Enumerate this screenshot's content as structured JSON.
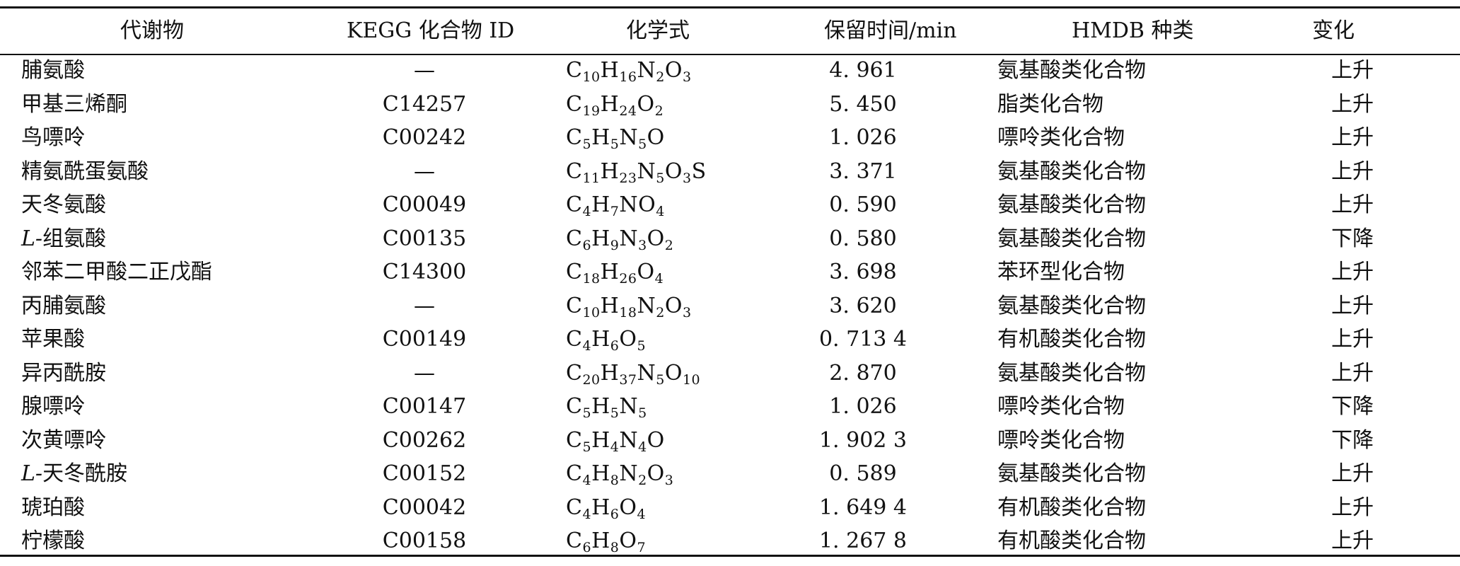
{
  "headers": {
    "metabolite": "代谢物",
    "kegg_id": "KEGG 化合物 ID",
    "formula": "化学式",
    "retention_time": "保留时间/min",
    "hmdb_class": "HMDB 种类",
    "change": "变化"
  },
  "rows": [
    {
      "prefix": "",
      "name": "脯氨酸",
      "kegg": "—",
      "formula": [
        [
          "C",
          "10"
        ],
        [
          "H",
          "16"
        ],
        [
          "N",
          "2"
        ],
        [
          "O",
          "3"
        ]
      ],
      "rt": "4. 961",
      "class": "氨基酸类化合物",
      "change": "上升"
    },
    {
      "prefix": "",
      "name": "甲基三烯酮",
      "kegg": "C14257",
      "formula": [
        [
          "C",
          "19"
        ],
        [
          "H",
          "24"
        ],
        [
          "O",
          "2"
        ]
      ],
      "rt": "5. 450",
      "class": "脂类化合物",
      "change": "上升"
    },
    {
      "prefix": "",
      "name": "鸟嘌呤",
      "kegg": "C00242",
      "formula": [
        [
          "C",
          "5"
        ],
        [
          "H",
          "5"
        ],
        [
          "N",
          "5"
        ],
        [
          "O",
          ""
        ]
      ],
      "rt": "1. 026",
      "class": "嘌呤类化合物",
      "change": "上升"
    },
    {
      "prefix": "",
      "name": "精氨酰蛋氨酸",
      "kegg": "—",
      "formula": [
        [
          "C",
          "11"
        ],
        [
          "H",
          "23"
        ],
        [
          "N",
          "5"
        ],
        [
          "O",
          "3"
        ],
        [
          "S",
          ""
        ]
      ],
      "rt": "3. 371",
      "class": "氨基酸类化合物",
      "change": "上升"
    },
    {
      "prefix": "",
      "name": "天冬氨酸",
      "kegg": "C00049",
      "formula": [
        [
          "C",
          "4"
        ],
        [
          "H",
          "7"
        ],
        [
          "NO",
          "4"
        ]
      ],
      "rt": "0. 590",
      "class": "氨基酸类化合物",
      "change": "上升"
    },
    {
      "prefix": "L-",
      "name": "组氨酸",
      "kegg": "C00135",
      "formula": [
        [
          "C",
          "6"
        ],
        [
          "H",
          "9"
        ],
        [
          "N",
          "3"
        ],
        [
          "O",
          "2"
        ]
      ],
      "rt": "0. 580",
      "class": "氨基酸类化合物",
      "change": "下降"
    },
    {
      "prefix": "",
      "name": "邻苯二甲酸二正戊酯",
      "kegg": "C14300",
      "formula": [
        [
          "C",
          "18"
        ],
        [
          "H",
          "26"
        ],
        [
          "O",
          "4"
        ]
      ],
      "rt": "3. 698",
      "class": "苯环型化合物",
      "change": "上升"
    },
    {
      "prefix": "",
      "name": "丙脯氨酸",
      "kegg": "—",
      "formula": [
        [
          "C",
          "10"
        ],
        [
          "H",
          "18"
        ],
        [
          "N",
          "2"
        ],
        [
          "O",
          "3"
        ]
      ],
      "rt": "3. 620",
      "class": "氨基酸类化合物",
      "change": "上升"
    },
    {
      "prefix": "",
      "name": "苹果酸",
      "kegg": "C00149",
      "formula": [
        [
          "C",
          "4"
        ],
        [
          "H",
          "6"
        ],
        [
          "O",
          "5"
        ]
      ],
      "rt": "0. 713 4",
      "class": "有机酸类化合物",
      "change": "上升"
    },
    {
      "prefix": "",
      "name": "异丙酰胺",
      "kegg": "—",
      "formula": [
        [
          "C",
          "20"
        ],
        [
          "H",
          "37"
        ],
        [
          "N",
          "5"
        ],
        [
          "O",
          "10"
        ]
      ],
      "rt": "2. 870",
      "class": "氨基酸类化合物",
      "change": "上升"
    },
    {
      "prefix": "",
      "name": "腺嘌呤",
      "kegg": "C00147",
      "formula": [
        [
          "C",
          "5"
        ],
        [
          "H",
          "5"
        ],
        [
          "N",
          "5"
        ]
      ],
      "rt": "1. 026",
      "class": "嘌呤类化合物",
      "change": "下降"
    },
    {
      "prefix": "",
      "name": "次黄嘌呤",
      "kegg": "C00262",
      "formula": [
        [
          "C",
          "5"
        ],
        [
          "H",
          "4"
        ],
        [
          "N",
          "4"
        ],
        [
          "O",
          ""
        ]
      ],
      "rt": "1. 902 3",
      "class": "嘌呤类化合物",
      "change": "下降"
    },
    {
      "prefix": "L-",
      "name": "天冬酰胺",
      "kegg": "C00152",
      "formula": [
        [
          "C",
          "4"
        ],
        [
          "H",
          "8"
        ],
        [
          "N",
          "2"
        ],
        [
          "O",
          "3"
        ]
      ],
      "rt": "0. 589",
      "class": "氨基酸类化合物",
      "change": "上升"
    },
    {
      "prefix": "",
      "name": "琥珀酸",
      "kegg": "C00042",
      "formula": [
        [
          "C",
          "4"
        ],
        [
          "H",
          "6"
        ],
        [
          "O",
          "4"
        ]
      ],
      "rt": "1. 649 4",
      "class": "有机酸类化合物",
      "change": "上升"
    },
    {
      "prefix": "",
      "name": "柠檬酸",
      "kegg": "C00158",
      "formula": [
        [
          "C",
          "6"
        ],
        [
          "H",
          "8"
        ],
        [
          "O",
          "7"
        ]
      ],
      "rt": "1. 267 8",
      "class": "有机酸类化合物",
      "change": "上升"
    }
  ]
}
